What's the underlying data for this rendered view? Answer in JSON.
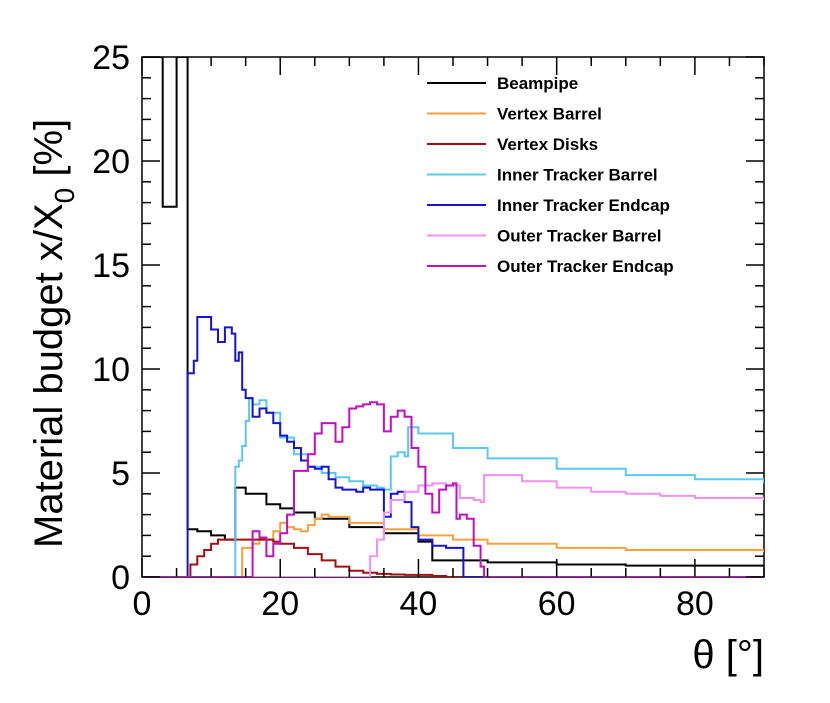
{
  "chart_data": {
    "type": "line",
    "style": "step-histogram",
    "xlabel": "θ [°]",
    "ylabel_main": "Material budget x/X",
    "ylabel_sub": "0",
    "ylabel_unit": "[%]",
    "xlim": [
      0,
      90
    ],
    "ylim": [
      0,
      25
    ],
    "xticks": [
      "0",
      "20",
      "40",
      "60",
      "80"
    ],
    "xtick_values": [
      0,
      20,
      40,
      60,
      80
    ],
    "yticks": [
      "0",
      "5",
      "10",
      "15",
      "20",
      "25"
    ],
    "ytick_values": [
      0,
      5,
      10,
      15,
      20,
      25
    ],
    "legend_position": "top-right",
    "series": [
      {
        "name": "Beampipe",
        "color": "#000000",
        "points": [
          [
            0,
            25
          ],
          [
            1,
            25
          ],
          [
            1,
            25
          ],
          [
            2,
            25
          ],
          [
            2,
            25
          ],
          [
            3,
            25
          ],
          [
            3,
            17.8
          ],
          [
            5,
            17.8
          ],
          [
            5,
            25
          ],
          [
            6.6,
            25
          ],
          [
            6.6,
            2.3
          ],
          [
            8,
            2.2
          ],
          [
            10,
            2.0
          ],
          [
            12,
            1.8
          ],
          [
            13.5,
            1.7
          ],
          [
            13.5,
            4.3
          ],
          [
            15,
            4.0
          ],
          [
            18,
            3.5
          ],
          [
            20,
            3.3
          ],
          [
            22,
            3.1
          ],
          [
            25,
            2.8
          ],
          [
            30,
            2.4
          ],
          [
            35,
            2.1
          ],
          [
            40,
            1.7
          ],
          [
            42,
            1.5
          ],
          [
            42,
            0.8
          ],
          [
            50,
            0.7
          ],
          [
            60,
            0.6
          ],
          [
            70,
            0.55
          ],
          [
            90,
            0.5
          ]
        ]
      },
      {
        "name": "Vertex Barrel",
        "color": "#f7a040",
        "points": [
          [
            14.5,
            0
          ],
          [
            14.5,
            1.4
          ],
          [
            16,
            1.6
          ],
          [
            17,
            1.8
          ],
          [
            19,
            2.2
          ],
          [
            20,
            2.6
          ],
          [
            21,
            2.4
          ],
          [
            22,
            2.3
          ],
          [
            23,
            2.2
          ],
          [
            24,
            2.5
          ],
          [
            25,
            2.8
          ],
          [
            26,
            3.0
          ],
          [
            27,
            2.9
          ],
          [
            30,
            2.6
          ],
          [
            35,
            2.3
          ],
          [
            40,
            2.0
          ],
          [
            45,
            1.8
          ],
          [
            50,
            1.6
          ],
          [
            60,
            1.4
          ],
          [
            70,
            1.3
          ],
          [
            90,
            1.2
          ]
        ]
      },
      {
        "name": "Vertex Disks",
        "color": "#a01010",
        "points": [
          [
            0,
            0
          ],
          [
            6.6,
            0
          ],
          [
            7,
            0.6
          ],
          [
            8,
            1.0
          ],
          [
            9,
            1.3
          ],
          [
            10,
            1.6
          ],
          [
            11,
            1.8
          ],
          [
            12,
            1.8
          ],
          [
            14,
            1.8
          ],
          [
            16,
            1.8
          ],
          [
            17,
            1.8
          ],
          [
            18,
            1.8
          ],
          [
            19,
            1.7
          ],
          [
            20,
            1.6
          ],
          [
            22,
            1.4
          ],
          [
            24,
            1.1
          ],
          [
            26,
            0.8
          ],
          [
            28,
            0.5
          ],
          [
            30,
            0.3
          ],
          [
            32,
            0.2
          ],
          [
            34,
            0.15
          ],
          [
            36,
            0.12
          ],
          [
            38,
            0.1
          ],
          [
            40,
            0.1
          ],
          [
            42,
            0.05
          ],
          [
            44,
            0
          ],
          [
            90,
            0
          ]
        ]
      },
      {
        "name": "Inner Tracker Barrel",
        "color": "#5bc8f0",
        "points": [
          [
            13.5,
            0
          ],
          [
            13.5,
            5.3
          ],
          [
            14,
            5.6
          ],
          [
            14.5,
            6.3
          ],
          [
            15,
            7.5
          ],
          [
            15.5,
            8.6
          ],
          [
            16,
            8.3
          ],
          [
            17,
            8.5
          ],
          [
            18,
            7.9
          ],
          [
            20,
            6.7
          ],
          [
            22,
            5.9
          ],
          [
            24,
            5.3
          ],
          [
            26,
            5.0
          ],
          [
            28,
            4.8
          ],
          [
            30,
            4.6
          ],
          [
            32,
            4.4
          ],
          [
            34,
            4.3
          ],
          [
            35,
            4.2
          ],
          [
            36,
            5.8
          ],
          [
            37,
            6.0
          ],
          [
            38,
            5.8
          ],
          [
            38.5,
            7.2
          ],
          [
            40,
            6.9
          ],
          [
            45,
            6.2
          ],
          [
            50,
            5.7
          ],
          [
            60,
            5.2
          ],
          [
            70,
            4.9
          ],
          [
            80,
            4.7
          ],
          [
            90,
            4.5
          ]
        ]
      },
      {
        "name": "Inner Tracker Endcap",
        "color": "#1515d0",
        "points": [
          [
            6.6,
            0
          ],
          [
            6.6,
            9.8
          ],
          [
            7.5,
            10.4
          ],
          [
            8,
            12.5
          ],
          [
            9,
            12.5
          ],
          [
            10,
            11.9
          ],
          [
            11,
            11.3
          ],
          [
            12,
            12.0
          ],
          [
            13,
            11.7
          ],
          [
            13.5,
            10.4
          ],
          [
            14,
            10.8
          ],
          [
            14.5,
            9.0
          ],
          [
            15,
            8.6
          ],
          [
            16,
            7.7
          ],
          [
            17,
            8.1
          ],
          [
            18,
            7.9
          ],
          [
            19,
            7.4
          ],
          [
            20,
            6.8
          ],
          [
            21,
            6.5
          ],
          [
            22,
            6.2
          ],
          [
            23,
            5.6
          ],
          [
            24,
            5.3
          ],
          [
            25,
            5.2
          ],
          [
            26,
            5.3
          ],
          [
            27,
            4.7
          ],
          [
            28,
            4.3
          ],
          [
            29,
            4.2
          ],
          [
            30,
            4.2
          ],
          [
            31,
            4.1
          ],
          [
            32,
            4.3
          ],
          [
            33,
            4.2
          ],
          [
            35,
            2.9
          ],
          [
            36,
            4.0
          ],
          [
            37,
            4.1
          ],
          [
            38,
            3.6
          ],
          [
            39,
            2.4
          ],
          [
            40,
            1.8
          ],
          [
            42,
            1.5
          ],
          [
            44,
            1.4
          ],
          [
            46,
            1.4
          ],
          [
            46.5,
            0
          ],
          [
            90,
            0
          ]
        ]
      },
      {
        "name": "Outer Tracker Barrel",
        "color": "#f090f0",
        "points": [
          [
            0,
            0
          ],
          [
            33,
            0
          ],
          [
            33,
            1.0
          ],
          [
            34,
            1.8
          ],
          [
            35,
            3.1
          ],
          [
            36,
            3.7
          ],
          [
            38,
            4.1
          ],
          [
            40,
            4.4
          ],
          [
            42,
            4.5
          ],
          [
            44,
            4.4
          ],
          [
            46,
            3.8
          ],
          [
            48,
            3.7
          ],
          [
            49,
            3.6
          ],
          [
            49.5,
            4.9
          ],
          [
            50,
            4.9
          ],
          [
            55,
            4.6
          ],
          [
            60,
            4.3
          ],
          [
            65,
            4.1
          ],
          [
            70,
            4.0
          ],
          [
            75,
            3.9
          ],
          [
            80,
            3.8
          ],
          [
            90,
            3.7
          ]
        ]
      },
      {
        "name": "Outer Tracker Endcap",
        "color": "#c010c0",
        "points": [
          [
            0,
            0
          ],
          [
            16,
            0
          ],
          [
            16,
            2.2
          ],
          [
            17,
            1.9
          ],
          [
            18,
            1.0
          ],
          [
            19,
            1.6
          ],
          [
            20,
            2.1
          ],
          [
            21,
            3.0
          ],
          [
            22,
            5.1
          ],
          [
            23,
            5.1
          ],
          [
            24,
            5.9
          ],
          [
            25,
            6.9
          ],
          [
            26,
            7.4
          ],
          [
            27,
            7.4
          ],
          [
            28,
            6.5
          ],
          [
            29,
            7.2
          ],
          [
            30,
            8.1
          ],
          [
            31,
            8.2
          ],
          [
            32,
            8.3
          ],
          [
            33,
            8.4
          ],
          [
            34,
            8.3
          ],
          [
            35,
            7.0
          ],
          [
            36,
            7.7
          ],
          [
            37,
            8.0
          ],
          [
            38,
            7.7
          ],
          [
            39,
            6.2
          ],
          [
            40,
            5.3
          ],
          [
            41,
            4.0
          ],
          [
            42,
            3.1
          ],
          [
            43,
            4.2
          ],
          [
            44,
            4.4
          ],
          [
            45,
            4.5
          ],
          [
            45.5,
            2.8
          ],
          [
            46,
            3.0
          ],
          [
            47,
            2.8
          ],
          [
            48,
            1.5
          ],
          [
            49,
            0.5
          ],
          [
            49.5,
            0
          ],
          [
            90,
            0
          ]
        ]
      }
    ]
  }
}
